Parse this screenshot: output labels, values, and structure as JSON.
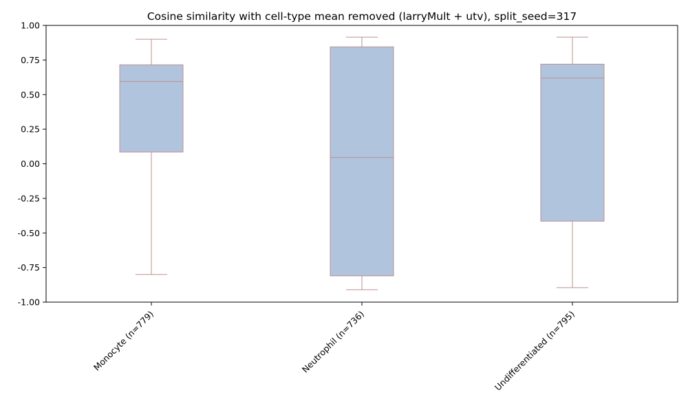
{
  "chart_data": {
    "type": "box",
    "title": "Cosine similarity with cell-type mean removed (larryMult + utv), split_seed=317",
    "xlabel": "",
    "ylabel": "",
    "ylim": [
      -1.0,
      1.0
    ],
    "yticks": [
      "-1.00",
      "-0.75",
      "-0.50",
      "-0.25",
      "0.00",
      "0.25",
      "0.50",
      "0.75",
      "1.00"
    ],
    "ytick_values": [
      -1.0,
      -0.75,
      -0.5,
      -0.25,
      0.0,
      0.25,
      0.5,
      0.75,
      1.0
    ],
    "grid": false,
    "categories": [
      "Monocyte (n=779)",
      "Neutrophil (n=736)",
      "Undifferentiated (n=795)"
    ],
    "boxes": [
      {
        "whisker_low": -0.8,
        "q1": 0.085,
        "median": 0.595,
        "q3": 0.715,
        "whisker_high": 0.9
      },
      {
        "whisker_low": -0.91,
        "q1": -0.81,
        "median": 0.045,
        "q3": 0.845,
        "whisker_high": 0.915
      },
      {
        "whisker_low": -0.895,
        "q1": -0.415,
        "median": 0.62,
        "q3": 0.72,
        "whisker_high": 0.915
      }
    ],
    "colors": {
      "box_fill": "#b0c4de",
      "box_edge": "#bc8f8f",
      "axis": "#000000"
    }
  }
}
